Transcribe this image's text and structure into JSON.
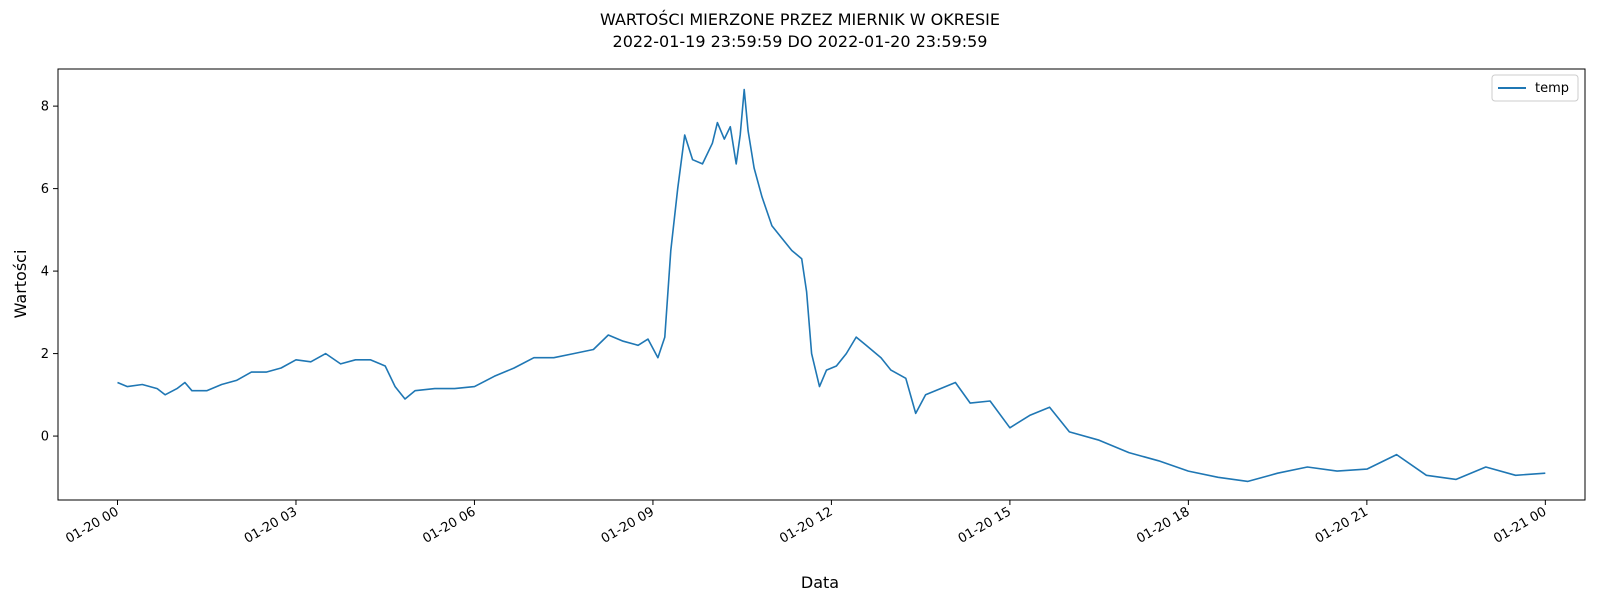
{
  "chart_data": {
    "type": "line",
    "title_lines": [
      "WARTOŚCI MIERZONE PRZEZ MIERNIK W OKRESIE",
      "2022-01-19 23:59:59 DO 2022-01-20 23:59:59"
    ],
    "xlabel": "Data",
    "ylabel": "Wartości",
    "x_range": [
      "2022-01-19 23:00",
      "2022-01-21 00:40"
    ],
    "ylim": [
      -1.55,
      8.9
    ],
    "x_ticks": [
      {
        "time": "2022-01-20 00:00",
        "label": "01-20 00"
      },
      {
        "time": "2022-01-20 03:00",
        "label": "01-20 03"
      },
      {
        "time": "2022-01-20 06:00",
        "label": "01-20 06"
      },
      {
        "time": "2022-01-20 09:00",
        "label": "01-20 09"
      },
      {
        "time": "2022-01-20 12:00",
        "label": "01-20 12"
      },
      {
        "time": "2022-01-20 15:00",
        "label": "01-20 15"
      },
      {
        "time": "2022-01-20 18:00",
        "label": "01-20 18"
      },
      {
        "time": "2022-01-20 21:00",
        "label": "01-20 21"
      },
      {
        "time": "2022-01-21 00:00",
        "label": "01-21 00"
      }
    ],
    "y_ticks": [
      {
        "value": 0,
        "label": "0"
      },
      {
        "value": 2,
        "label": "2"
      },
      {
        "value": 4,
        "label": "4"
      },
      {
        "value": 6,
        "label": "6"
      },
      {
        "value": 8,
        "label": "8"
      }
    ],
    "grid": false,
    "legend_position": "top-right",
    "series": [
      {
        "name": "temp",
        "color": "#1f77b4",
        "points": [
          [
            "2022-01-20 00:00",
            1.3
          ],
          [
            "2022-01-20 00:10",
            1.2
          ],
          [
            "2022-01-20 00:25",
            1.25
          ],
          [
            "2022-01-20 00:40",
            1.15
          ],
          [
            "2022-01-20 00:48",
            1.0
          ],
          [
            "2022-01-20 01:00",
            1.15
          ],
          [
            "2022-01-20 01:08",
            1.3
          ],
          [
            "2022-01-20 01:15",
            1.1
          ],
          [
            "2022-01-20 01:30",
            1.1
          ],
          [
            "2022-01-20 01:45",
            1.25
          ],
          [
            "2022-01-20 02:00",
            1.35
          ],
          [
            "2022-01-20 02:15",
            1.55
          ],
          [
            "2022-01-20 02:30",
            1.55
          ],
          [
            "2022-01-20 02:45",
            1.65
          ],
          [
            "2022-01-20 03:00",
            1.85
          ],
          [
            "2022-01-20 03:15",
            1.8
          ],
          [
            "2022-01-20 03:30",
            2.0
          ],
          [
            "2022-01-20 03:45",
            1.75
          ],
          [
            "2022-01-20 04:00",
            1.85
          ],
          [
            "2022-01-20 04:15",
            1.85
          ],
          [
            "2022-01-20 04:30",
            1.7
          ],
          [
            "2022-01-20 04:40",
            1.2
          ],
          [
            "2022-01-20 04:50",
            0.9
          ],
          [
            "2022-01-20 05:00",
            1.1
          ],
          [
            "2022-01-20 05:20",
            1.15
          ],
          [
            "2022-01-20 05:40",
            1.15
          ],
          [
            "2022-01-20 06:00",
            1.2
          ],
          [
            "2022-01-20 06:20",
            1.45
          ],
          [
            "2022-01-20 06:40",
            1.65
          ],
          [
            "2022-01-20 07:00",
            1.9
          ],
          [
            "2022-01-20 07:20",
            1.9
          ],
          [
            "2022-01-20 07:40",
            2.0
          ],
          [
            "2022-01-20 08:00",
            2.1
          ],
          [
            "2022-01-20 08:15",
            2.45
          ],
          [
            "2022-01-20 08:30",
            2.3
          ],
          [
            "2022-01-20 08:45",
            2.2
          ],
          [
            "2022-01-20 08:55",
            2.35
          ],
          [
            "2022-01-20 09:05",
            1.9
          ],
          [
            "2022-01-20 09:12",
            2.4
          ],
          [
            "2022-01-20 09:18",
            4.5
          ],
          [
            "2022-01-20 09:25",
            6.0
          ],
          [
            "2022-01-20 09:32",
            7.3
          ],
          [
            "2022-01-20 09:40",
            6.7
          ],
          [
            "2022-01-20 09:50",
            6.6
          ],
          [
            "2022-01-20 10:00",
            7.1
          ],
          [
            "2022-01-20 10:05",
            7.6
          ],
          [
            "2022-01-20 10:12",
            7.2
          ],
          [
            "2022-01-20 10:18",
            7.5
          ],
          [
            "2022-01-20 10:24",
            6.6
          ],
          [
            "2022-01-20 10:28",
            7.3
          ],
          [
            "2022-01-20 10:32",
            8.4
          ],
          [
            "2022-01-20 10:36",
            7.4
          ],
          [
            "2022-01-20 10:42",
            6.5
          ],
          [
            "2022-01-20 10:50",
            5.8
          ],
          [
            "2022-01-20 11:00",
            5.1
          ],
          [
            "2022-01-20 11:10",
            4.8
          ],
          [
            "2022-01-20 11:20",
            4.5
          ],
          [
            "2022-01-20 11:30",
            4.3
          ],
          [
            "2022-01-20 11:35",
            3.5
          ],
          [
            "2022-01-20 11:40",
            2.0
          ],
          [
            "2022-01-20 11:48",
            1.2
          ],
          [
            "2022-01-20 11:55",
            1.6
          ],
          [
            "2022-01-20 12:05",
            1.7
          ],
          [
            "2022-01-20 12:15",
            2.0
          ],
          [
            "2022-01-20 12:25",
            2.4
          ],
          [
            "2022-01-20 12:35",
            2.2
          ],
          [
            "2022-01-20 12:50",
            1.9
          ],
          [
            "2022-01-20 13:00",
            1.6
          ],
          [
            "2022-01-20 13:15",
            1.4
          ],
          [
            "2022-01-20 13:25",
            0.55
          ],
          [
            "2022-01-20 13:35",
            1.0
          ],
          [
            "2022-01-20 13:55",
            1.2
          ],
          [
            "2022-01-20 14:05",
            1.3
          ],
          [
            "2022-01-20 14:20",
            0.8
          ],
          [
            "2022-01-20 14:40",
            0.85
          ],
          [
            "2022-01-20 15:00",
            0.2
          ],
          [
            "2022-01-20 15:20",
            0.5
          ],
          [
            "2022-01-20 15:40",
            0.7
          ],
          [
            "2022-01-20 16:00",
            0.1
          ],
          [
            "2022-01-20 16:30",
            -0.1
          ],
          [
            "2022-01-20 17:00",
            -0.4
          ],
          [
            "2022-01-20 17:30",
            -0.6
          ],
          [
            "2022-01-20 18:00",
            -0.85
          ],
          [
            "2022-01-20 18:30",
            -1.0
          ],
          [
            "2022-01-20 19:00",
            -1.1
          ],
          [
            "2022-01-20 19:30",
            -0.9
          ],
          [
            "2022-01-20 20:00",
            -0.75
          ],
          [
            "2022-01-20 20:30",
            -0.85
          ],
          [
            "2022-01-20 21:00",
            -0.8
          ],
          [
            "2022-01-20 21:30",
            -0.45
          ],
          [
            "2022-01-20 22:00",
            -0.95
          ],
          [
            "2022-01-20 22:30",
            -1.05
          ],
          [
            "2022-01-20 23:00",
            -0.75
          ],
          [
            "2022-01-20 23:30",
            -0.95
          ],
          [
            "2022-01-21 00:00",
            -0.9
          ]
        ]
      }
    ]
  }
}
